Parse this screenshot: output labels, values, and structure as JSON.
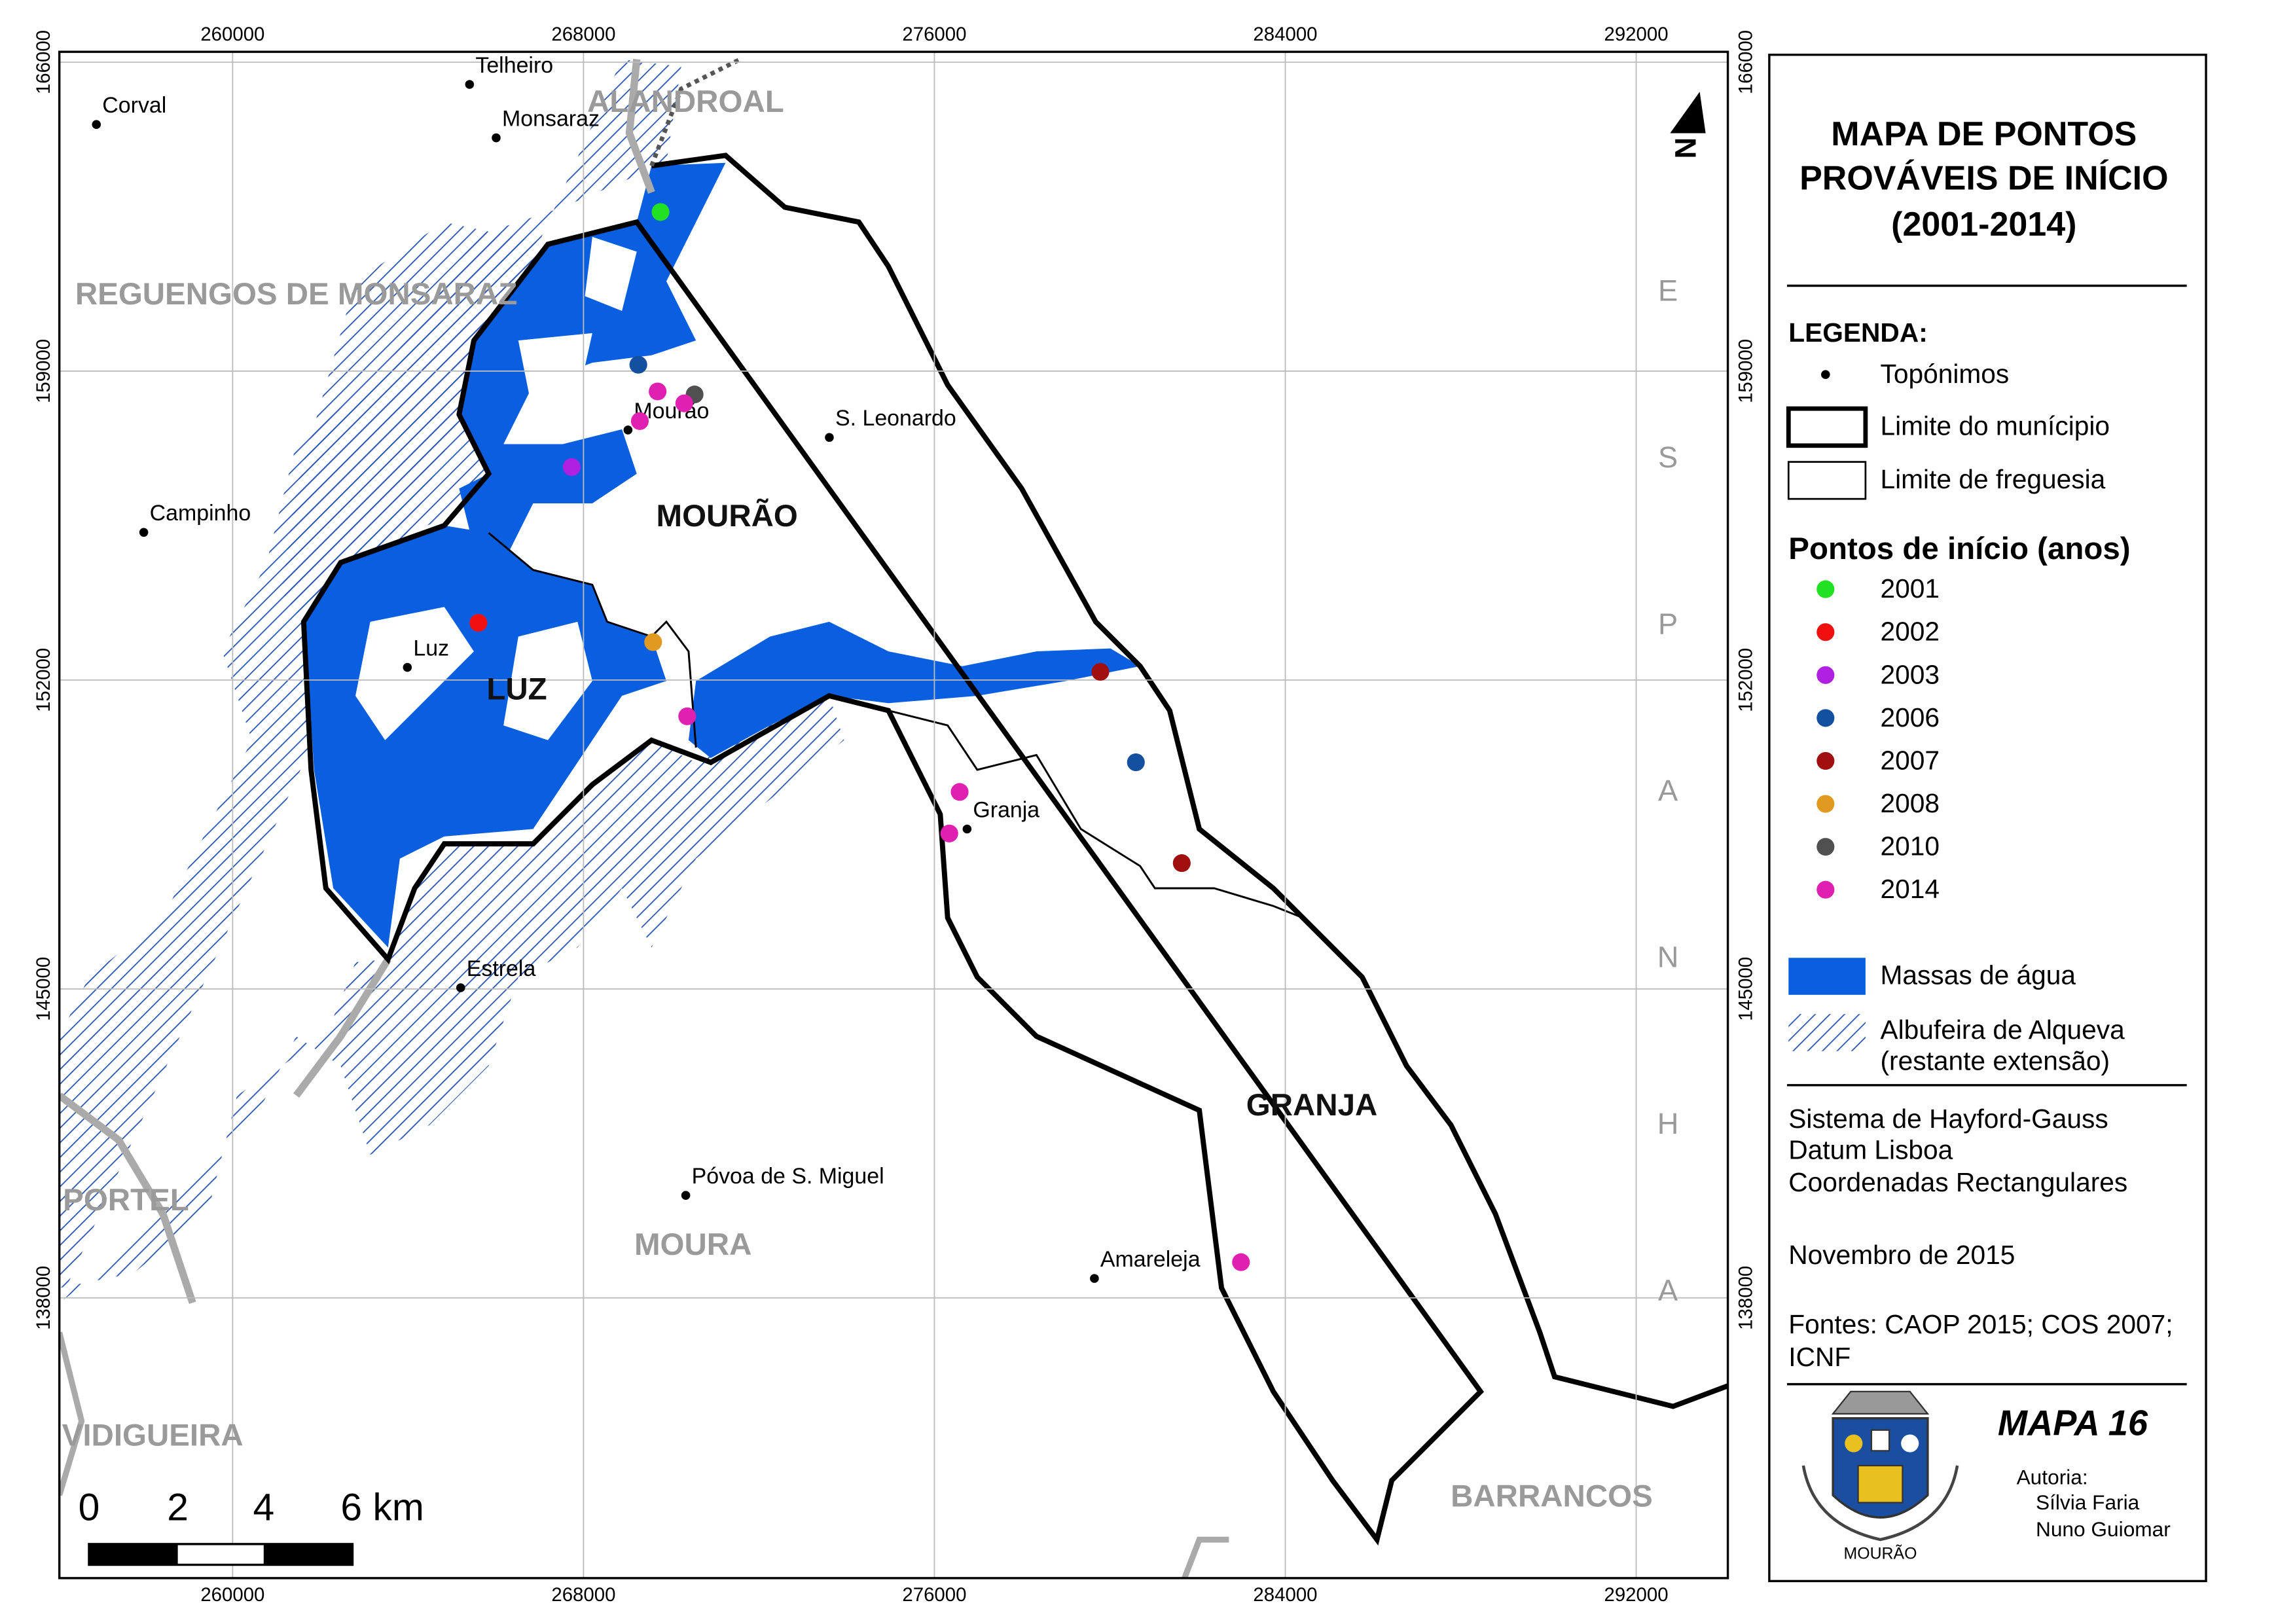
{
  "title_lines": [
    "MAPA DE PONTOS",
    "PROVÁVEIS DE INÍCIO",
    "(2001-2014)"
  ],
  "map": {
    "xlim": [
      256050,
      294090
    ],
    "ylim": [
      131650,
      166235
    ],
    "xticks": [
      260000,
      268000,
      276000,
      284000,
      292000
    ],
    "yticks": [
      138000,
      145000,
      152000,
      159000,
      166000
    ],
    "grid": true
  },
  "toponyms": [
    {
      "name": "Telheiro",
      "x": 265402,
      "y": 165496
    },
    {
      "name": "Monsaraz",
      "x": 266009,
      "y": 164286
    },
    {
      "name": "Corval",
      "x": 256894,
      "y": 164588
    },
    {
      "name": "Mourão",
      "x": 269014,
      "y": 157665
    },
    {
      "name": "S. Leonardo",
      "x": 273605,
      "y": 157497
    },
    {
      "name": "Campinho",
      "x": 257974,
      "y": 155346
    },
    {
      "name": "Luz",
      "x": 263984,
      "y": 152287
    },
    {
      "name": "Granja",
      "x": 276745,
      "y": 148624
    },
    {
      "name": "Estrela",
      "x": 265199,
      "y": 145027
    },
    {
      "name": "Póvoa de S. Miguel",
      "x": 270331,
      "y": 140322
    },
    {
      "name": "Amareleja",
      "x": 279648,
      "y": 138440
    }
  ],
  "start_points": [
    {
      "name": "2001",
      "color": "#22e022",
      "points": [
        [
          269756,
          162605
        ]
      ]
    },
    {
      "name": "2002",
      "color": "#f01010",
      "points": [
        [
          265604,
          153296
        ]
      ]
    },
    {
      "name": "2003",
      "color": "#b020e0",
      "points": [
        [
          267731,
          156825
        ]
      ]
    },
    {
      "name": "2006",
      "color": "#1450a0",
      "points": [
        [
          269250,
          159144
        ],
        [
          280594,
          150136
        ]
      ]
    },
    {
      "name": "2007",
      "color": "#a01010",
      "points": [
        [
          279784,
          152186
        ],
        [
          281640,
          147851
        ]
      ]
    },
    {
      "name": "2008",
      "color": "#e09a20",
      "points": [
        [
          269588,
          152859
        ]
      ]
    },
    {
      "name": "2010",
      "color": "#505050",
      "points": [
        [
          270533,
          158471
        ]
      ]
    },
    {
      "name": "2014",
      "color": "#e020b0",
      "points": [
        [
          269690,
          158539
        ],
        [
          270297,
          158270
        ],
        [
          269284,
          157867
        ],
        [
          270364,
          151178
        ],
        [
          276576,
          149464
        ],
        [
          276340,
          148523
        ],
        [
          282990,
          138809
        ]
      ]
    }
  ],
  "parishes": [
    "MOURÃO",
    "LUZ",
    "GRANJA"
  ],
  "neighbors": [
    "ALANDROAL",
    "REGUENGOS DE MONSARAZ",
    "PORTEL",
    "VIDIGUEIRA",
    "MOURA",
    "BARRANCOS",
    "ESPANHA"
  ],
  "north": "N",
  "scale_labels": [
    "0",
    "2",
    "4",
    "6 km"
  ],
  "legend": {
    "title": "LEGENDA:",
    "toponyms": "Topónimos",
    "municipality": "Limite do munícipio",
    "parish": "Limite de freguesia",
    "points_title": "Pontos de início (anos)",
    "water": "Massas de água",
    "reservoir": [
      "Albufeira de Alqueva",
      "(restante extensão)"
    ]
  },
  "projection": [
    "Sistema de Hayford-Gauss",
    "Datum Lisboa",
    "Coordenadas Rectangulares"
  ],
  "date": "Novembro de 2015",
  "sources": [
    "Fontes: CAOP 2015; COS 2007;",
    "ICNF"
  ],
  "map_number": "MAPA 16",
  "authorship": {
    "label": "Autoria:",
    "authors": [
      "Sílvia Faria",
      "Nuno Guiomar"
    ]
  },
  "emblem_text": "MOURÃO"
}
